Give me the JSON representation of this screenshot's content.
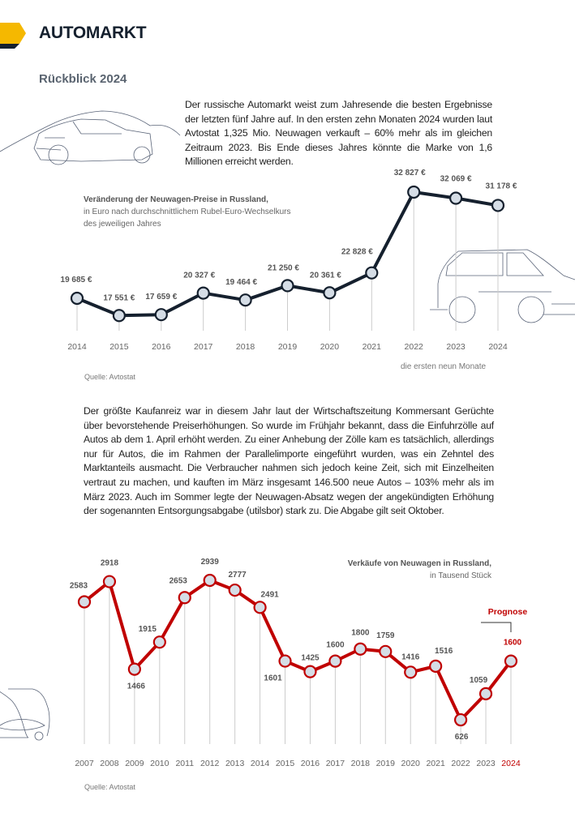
{
  "header": {
    "title": "AUTOMARKT",
    "accent_color": "#f5b800",
    "dark_color": "#15202e"
  },
  "subtitle": "Rückblick 2024",
  "intro_text": "Der russische Automarkt weist zum Jahresende die besten Ergebnisse der letzten fünf Jahre auf. In den ersten zehn Monaten 2024 wurden laut Avtostat 1,325 Mio. Neuwagen verkauft – 60% mehr als im gleichen Zeitraum 2023. Bis Ende dieses Jahres könnte die Marke von 1,6 Millionen erreicht werden.",
  "body_text": "Der größte Kaufanreiz war in diesem Jahr laut der Wirtschaftszeitung Kommersant Gerüchte über bevorstehende Preiserhöhungen. So wurde im Frühjahr bekannt, dass die Einfuhrzölle auf Autos ab dem 1. April erhöht werden. Zu einer Anhebung der Zölle kam es tatsächlich, allerdings nur für Autos, die im Rahmen der Parallelimporte eingeführt wurden, was ein Zehntel des Marktanteils ausmacht. Die Verbraucher nahmen sich jedoch keine Zeit, sich mit Einzelheiten vertraut zu machen, und kauften im März insgesamt 146.500 neue Autos – 103% mehr als im März 2023. Auch im Sommer legte der Neuwagen-Absatz wegen der angekündigten Erhöhung der sogenannten Entsorgungsabgabe (utilsbor) stark zu. Die Abgabe gilt seit Oktober.",
  "chart_data": [
    {
      "type": "line",
      "title": "Veränderung der Neuwagen-Preise in Russland,",
      "subtitle_lines": [
        "in Euro nach durchschnittlichem Rubel-Euro-Wechselkurs",
        "des jeweiligen Jahres"
      ],
      "categories": [
        "2014",
        "2015",
        "2016",
        "2017",
        "2018",
        "2019",
        "2020",
        "2021",
        "2022",
        "2023",
        "2024"
      ],
      "values": [
        19685,
        17551,
        17659,
        20327,
        19464,
        21250,
        20361,
        22828,
        32827,
        32069,
        31178
      ],
      "labels": [
        "19 685 €",
        "17 551 €",
        "17 659 €",
        "20 327 €",
        "19 464 €",
        "21 250 €",
        "20 361 €",
        "22 828 €",
        "32 827 €",
        "32 069 €",
        "31 178 €"
      ],
      "note": "die ersten neun Monate",
      "source": "Quelle: Avtostat",
      "line_color": "#15202e",
      "marker_color": "#d5dde6"
    },
    {
      "type": "line",
      "title": "Verkäufe von Neuwagen in Russland,",
      "subtitle_lines": [
        "in Tausend Stück"
      ],
      "categories": [
        "2007",
        "2008",
        "2009",
        "2010",
        "2011",
        "2012",
        "2013",
        "2014",
        "2015",
        "2016",
        "2017",
        "2018",
        "2019",
        "2020",
        "2021",
        "2022",
        "2023",
        "2024"
      ],
      "values": [
        2583,
        2918,
        1466,
        1915,
        2653,
        2939,
        2777,
        2491,
        1601,
        1425,
        1600,
        1800,
        1759,
        1416,
        1516,
        626,
        1059,
        1600
      ],
      "labels": [
        "2583",
        "2918",
        "1466",
        "1915",
        "2653",
        "2939",
        "2777",
        "2491",
        "1601",
        "1425",
        "1600",
        "1800",
        "1759",
        "1416",
        "1516",
        "626",
        "1059",
        "1600"
      ],
      "forecast_label": "Prognose",
      "forecast_category": "2024",
      "source": "Quelle: Avtostat",
      "line_color": "#c00000",
      "forecast_color": "#c00000",
      "marker_color": "#d5dde6"
    }
  ]
}
